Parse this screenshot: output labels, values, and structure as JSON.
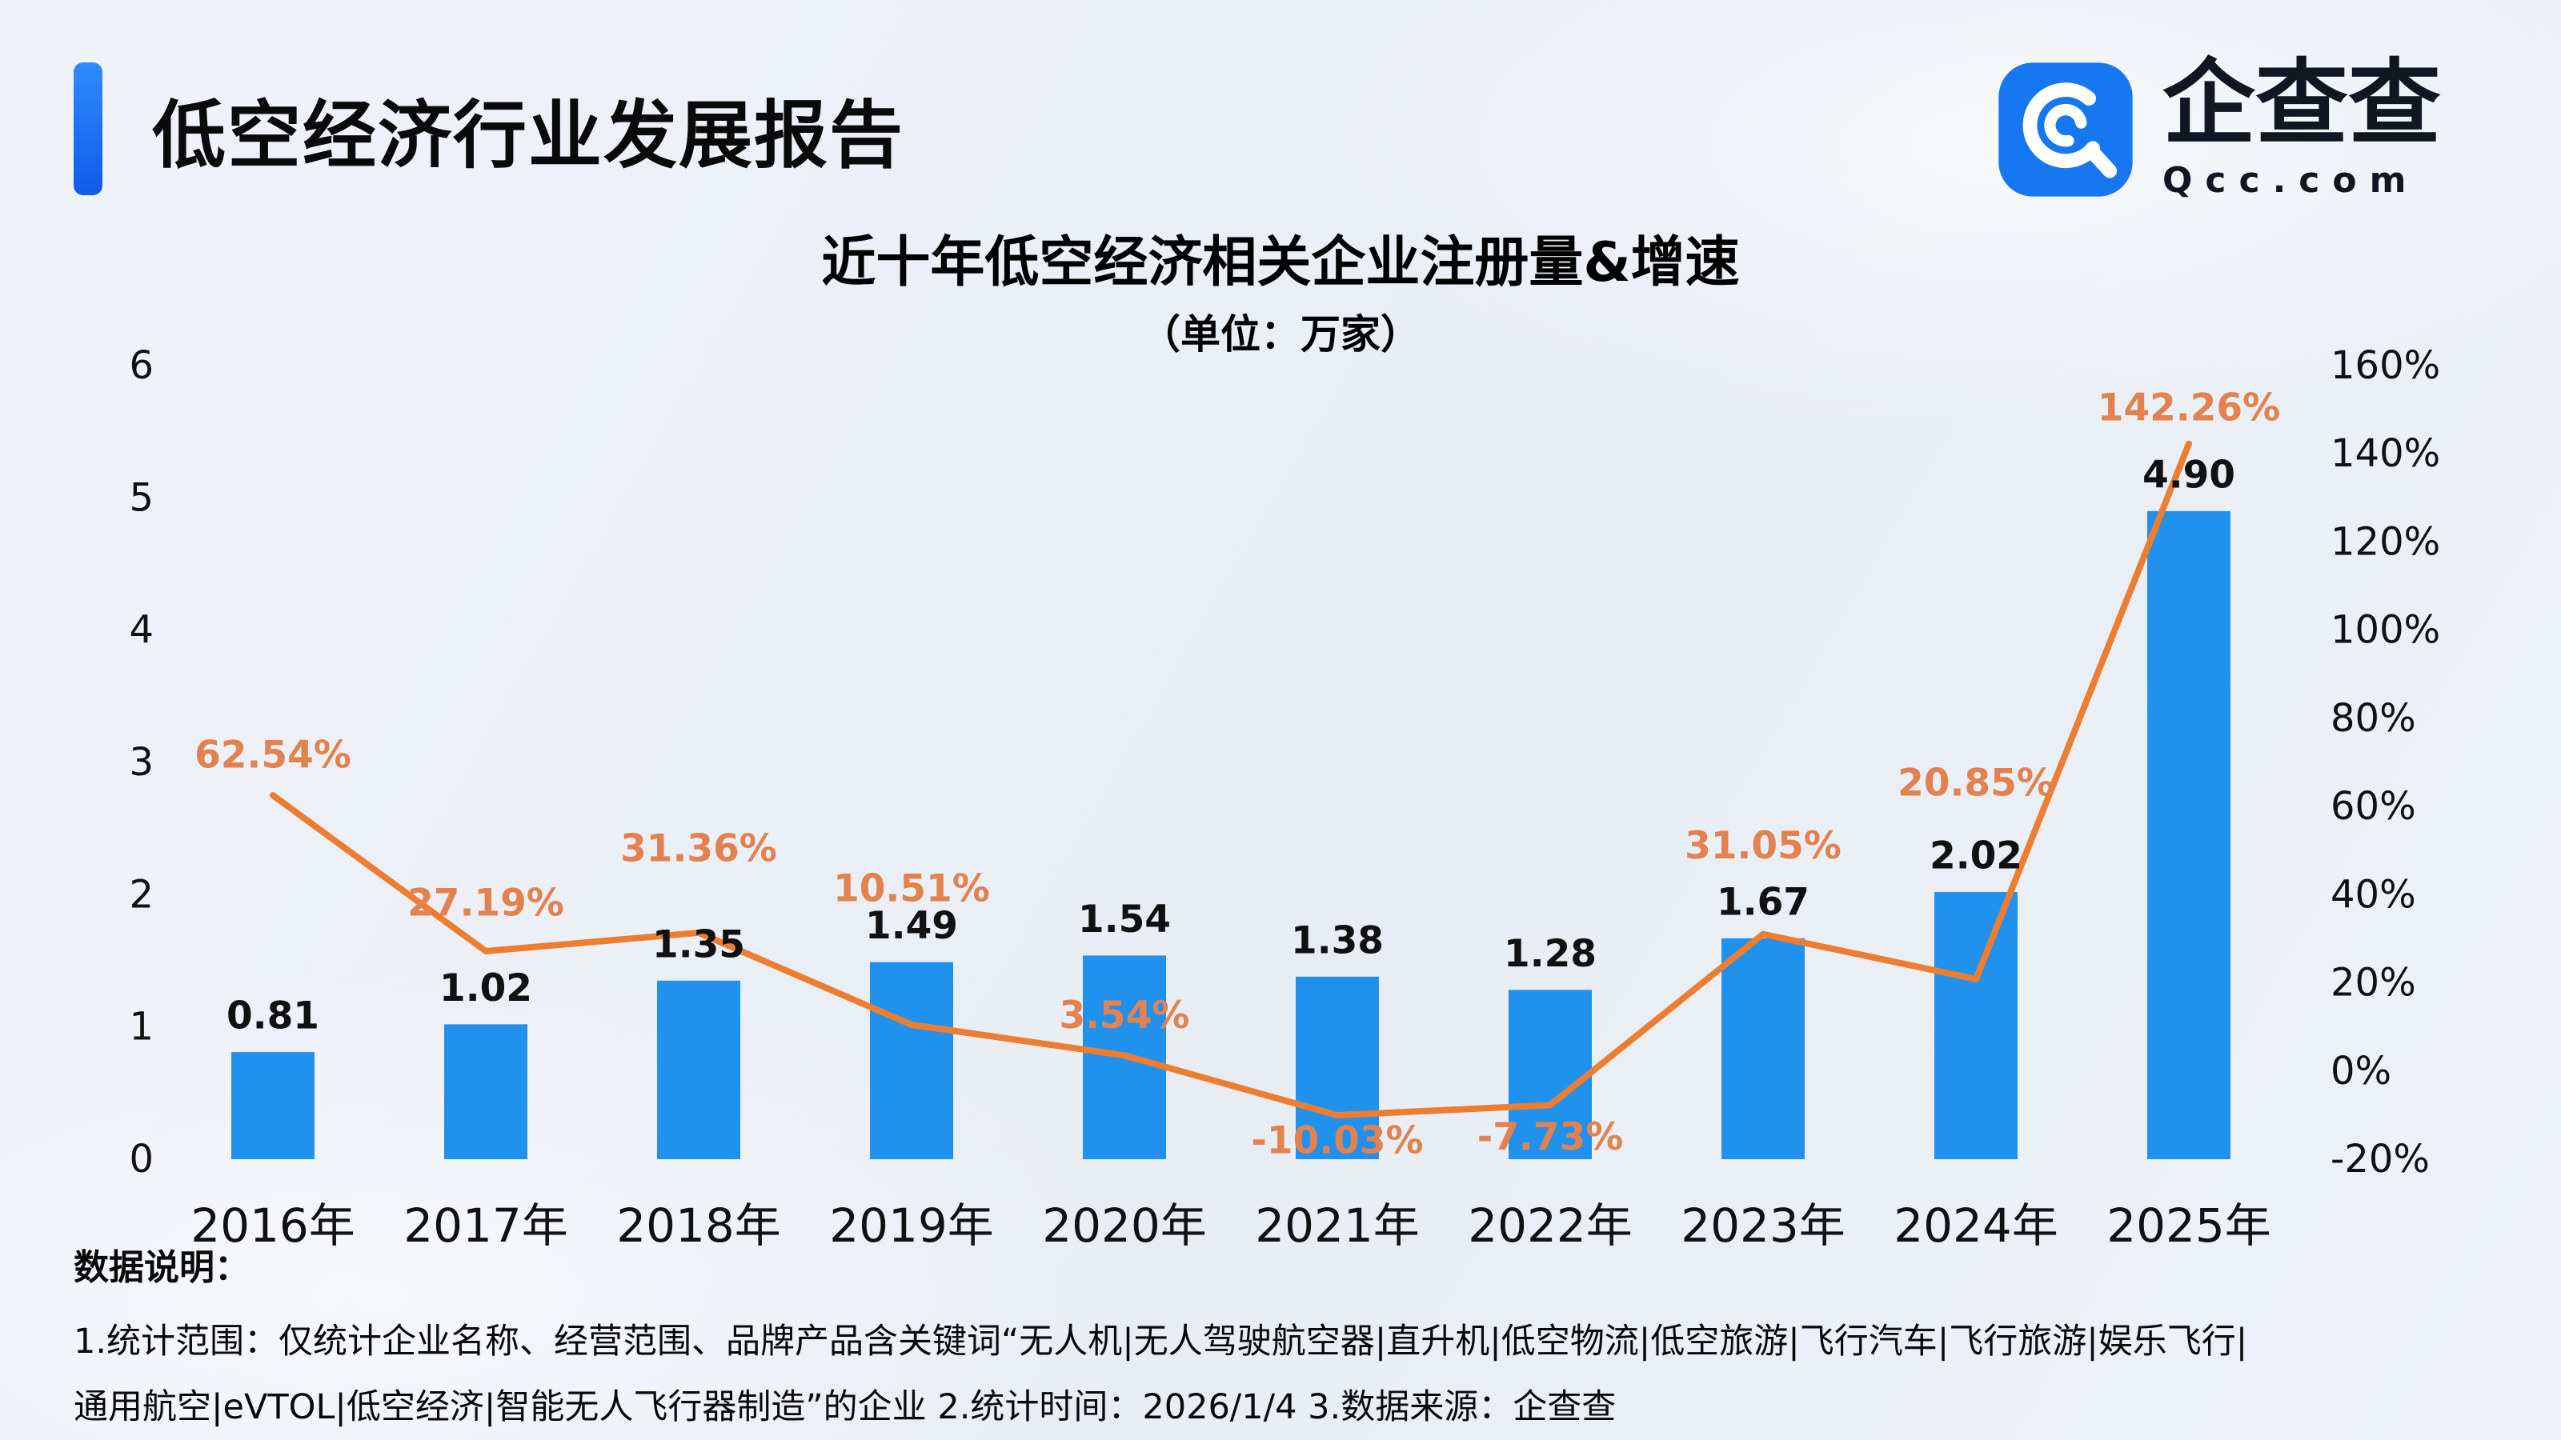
{
  "header": {
    "accent_color": "#1E74F6",
    "title": "低空经济行业发展报告",
    "logo": {
      "text": "企查查",
      "domain": "Qcc.com",
      "icon": "qcc-magnifier-icon",
      "color": "#1677F0"
    }
  },
  "chart_data": {
    "type": "combo-bar-line",
    "title": "近十年低空经济相关企业注册量&增速",
    "subtitle": "（单位：万家）",
    "categories": [
      "2016年",
      "2017年",
      "2018年",
      "2019年",
      "2020年",
      "2021年",
      "2022年",
      "2023年",
      "2024年",
      "2025年"
    ],
    "series": [
      {
        "type": "bar",
        "axis": "left",
        "color": "#2191EE",
        "values": [
          0.81,
          1.02,
          1.35,
          1.49,
          1.54,
          1.38,
          1.28,
          1.67,
          2.02,
          4.9
        ]
      },
      {
        "type": "line",
        "axis": "right",
        "color": "#ED7D31",
        "label_color": "#E2824E",
        "values": [
          62.54,
          27.19,
          31.36,
          10.51,
          3.54,
          -10.03,
          -7.73,
          31.05,
          20.85,
          142.26
        ],
        "label_dy": [
          -50,
          -60,
          -105,
          -170,
          -50,
          32,
          40,
          -110,
          -245,
          -45
        ]
      }
    ],
    "left_axis": {
      "min": 0,
      "max": 6,
      "ticks": [
        6,
        5,
        4,
        3,
        2,
        1,
        0
      ]
    },
    "right_axis": {
      "min": -20,
      "max": 160,
      "ticks": [
        160,
        140,
        120,
        100,
        80,
        60,
        40,
        20,
        0,
        -20
      ],
      "suffix": "%"
    },
    "grid": false,
    "legend": false
  },
  "footer": {
    "heading": "数据说明：",
    "lines": [
      "1.统计范围：仅统计企业名称、经营范围、品牌产品含关键词“无人机|无人驾驶航空器|直升机|低空物流|低空旅游|飞行汽车|飞行旅游|娱乐飞行|",
      "通用航空|eVTOL|低空经济|智能无人飞行器制造”的企业  2.统计时间：2026/1/4  3.数据来源：企查查"
    ]
  }
}
